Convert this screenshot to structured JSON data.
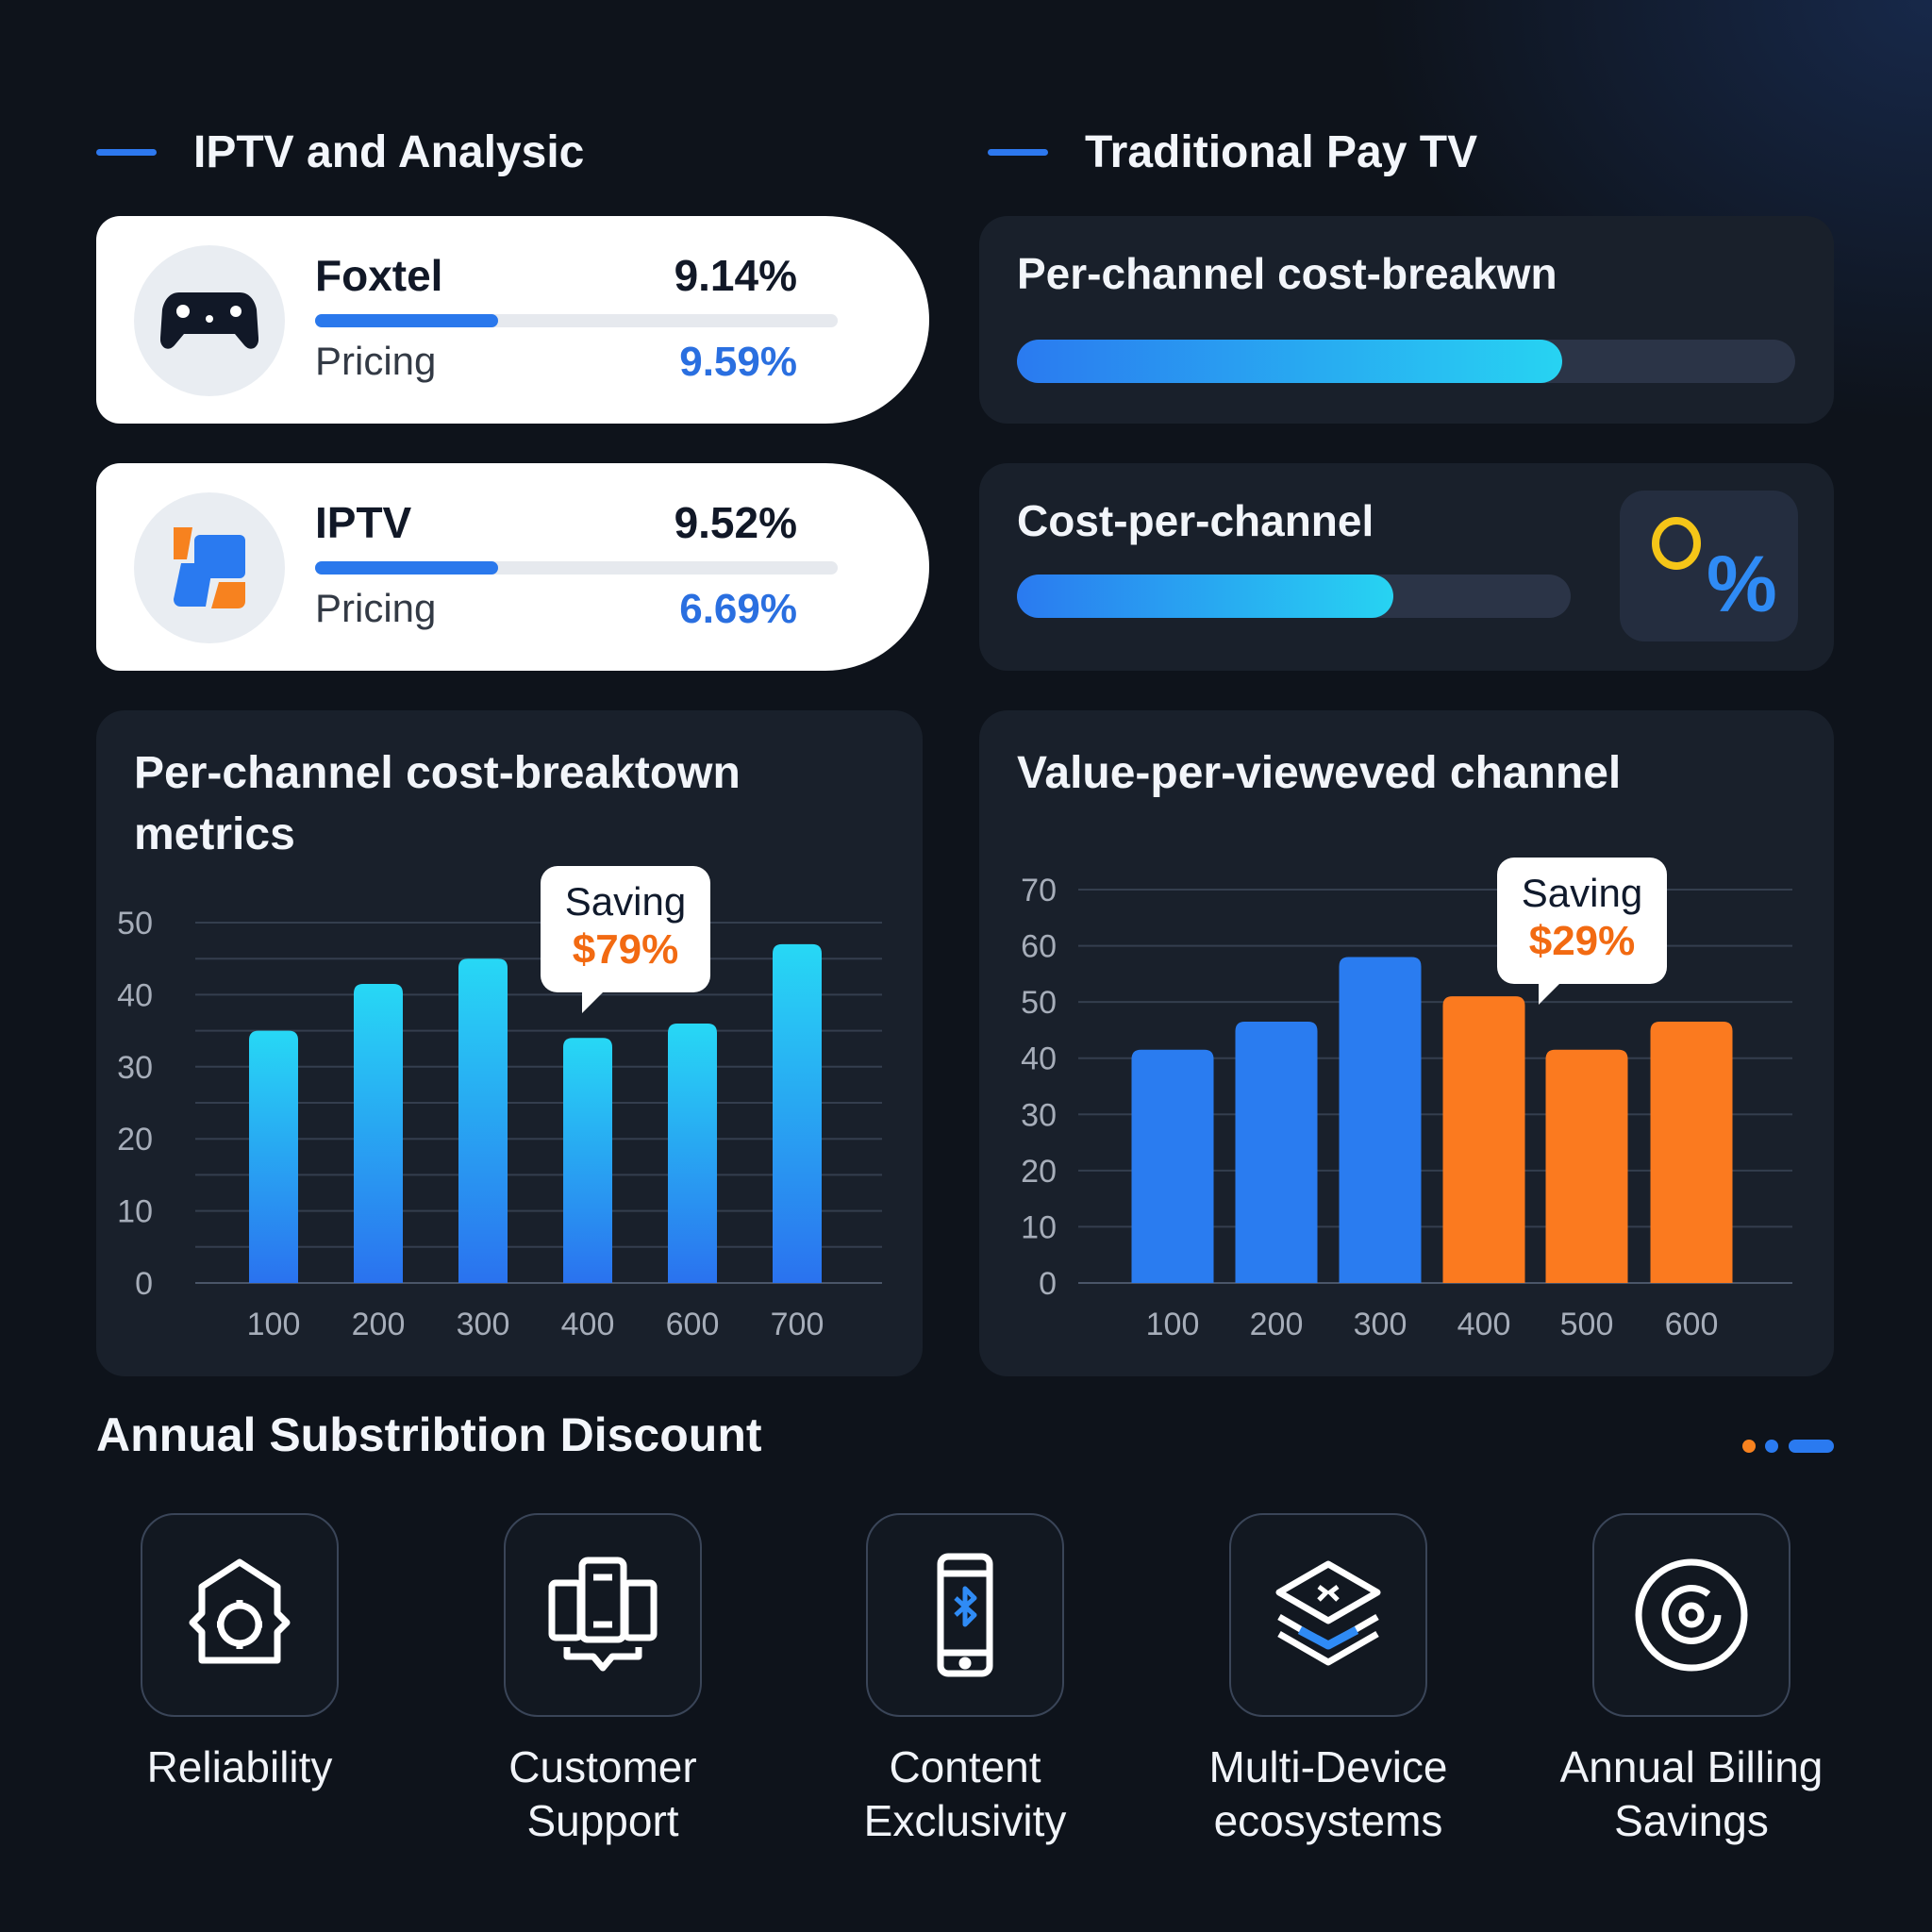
{
  "headers": {
    "left": "IPTV and Analysic",
    "right": "Traditional Pay TV"
  },
  "providers": [
    {
      "name": "Foxtel",
      "value": "9.14%",
      "bar_percent": 35,
      "sub_label": "Pricing",
      "sub_value": "9.59%",
      "icon": "gamepad-icon"
    },
    {
      "name": "IPTV",
      "value": "9.52%",
      "bar_percent": 35,
      "sub_label": "Pricing",
      "sub_value": "6.69%",
      "icon": "iptv-logo-icon"
    }
  ],
  "traditional": [
    {
      "title": "Per-channel cost-breakwn",
      "progress_percent": 70
    },
    {
      "title": "Cost-per-channel",
      "progress_percent": 68,
      "icon": "percent-icon"
    }
  ],
  "chart_data": [
    {
      "type": "bar",
      "title": "Per-channel cost-breaktown metrics",
      "categories": [
        "100",
        "200",
        "300",
        "400",
        "600",
        "700"
      ],
      "values": [
        35,
        41.5,
        45,
        34,
        36,
        47
      ],
      "ylim": [
        0,
        50
      ],
      "yticks": [
        "0",
        "10",
        "20",
        "30",
        "40",
        "50"
      ],
      "grid": true,
      "color": "#2aa4f2",
      "callout": {
        "label": "Saving",
        "value": "$79%",
        "category": "400"
      }
    },
    {
      "type": "bar",
      "title": "Value-per-viewe​ved channel",
      "categories": [
        "100",
        "200",
        "300",
        "400",
        "500",
        "600"
      ],
      "values": [
        41.5,
        46.5,
        58,
        51,
        41.5,
        46.5
      ],
      "ylim": [
        0,
        70
      ],
      "yticks": [
        "0",
        "10",
        "20",
        "30",
        "40",
        "50",
        "60",
        "70"
      ],
      "grid": true,
      "colors": [
        "#2a7cf0",
        "#2a7cf0",
        "#2a7cf0",
        "#fb7a1f",
        "#fb7a1f",
        "#fb7a1f"
      ],
      "callout": {
        "label": "Saving",
        "value": "$29%",
        "category": "400"
      }
    }
  ],
  "discount": {
    "title": "Annual Substribtion Discount",
    "pager_colors": [
      "#f7821f",
      "#2a7af0",
      "#2a7af0"
    ],
    "items": [
      {
        "label": "Reliability",
        "icon": "house-gear-icon"
      },
      {
        "label": "Customer Support",
        "line1": "Customer",
        "line2": "Support",
        "icon": "support-devices-icon"
      },
      {
        "label": "Content Exclusivity",
        "line1": "Content",
        "line2": "Exclusivity",
        "icon": "phone-bluetooth-icon"
      },
      {
        "label": "Multi-Device ecosystems",
        "line1": "Multi-Device",
        "line2": "ecosystems",
        "icon": "layers-icon"
      },
      {
        "label": "Annual Billing Savings",
        "line1": "Annual Billing",
        "line2": "Savings",
        "icon": "target-icon"
      }
    ]
  }
}
